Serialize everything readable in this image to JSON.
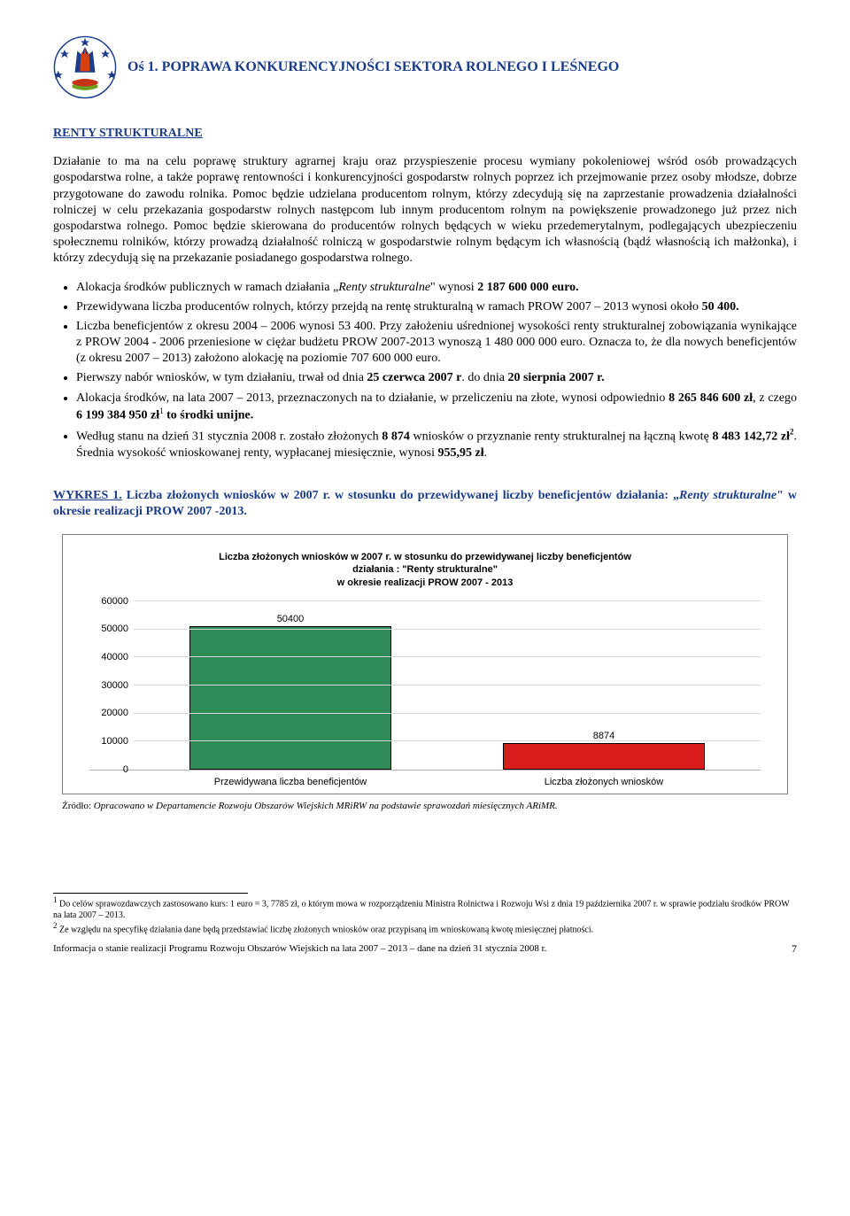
{
  "header": {
    "axis_title": "Oś 1. POPRAWA KONKURENCYJNOŚCI SEKTORA ROLNEGO I LEŚNEGO"
  },
  "section": {
    "title": "RENTY STRUKTURALNE"
  },
  "paragraphs": {
    "p1": "Działanie to ma na celu poprawę struktury agrarnej kraju oraz przyspieszenie procesu wymiany pokoleniowej wśród osób prowadzących gospodarstwa rolne, a także poprawę rentowności i konkurencyjności gospodarstw rolnych poprzez ich przejmowanie przez osoby młodsze, dobrze przygotowane do zawodu rolnika. Pomoc będzie udzielana producentom rolnym, którzy zdecydują się na zaprzestanie prowadzenia działalności rolniczej w celu przekazania gospodarstw rolnych następcom lub innym producentom rolnym na powiększenie prowadzonego już przez nich gospodarstwa rolnego. Pomoc będzie skierowana do producentów rolnych będących w wieku przedemerytalnym, podlegających ubezpieczeniu społecznemu rolników, którzy prowadzą działalność rolniczą w gospodarstwie rolnym będącym ich własnością (bądź własnością ich małżonka), i którzy zdecydują się na przekazanie posiadanego gospodarstwa rolnego."
  },
  "bullets": {
    "b1_pre": "Alokacja środków publicznych w ramach działania „",
    "b1_it": "Renty strukturalne",
    "b1_post": "\" wynosi ",
    "b1_bold": "2 187 600 000 euro.",
    "b2_pre": "Przewidywana liczba producentów rolnych, którzy przejdą na rentę strukturalną w ramach PROW 2007 – 2013 wynosi około ",
    "b2_bold": "50 400.",
    "b3": "Liczba beneficjentów z okresu 2004 – 2006 wynosi 53 400. Przy założeniu uśrednionej wysokości renty strukturalnej zobowiązania wynikające z PROW 2004 - 2006 przeniesione  w ciężar budżetu PROW 2007-2013 wynoszą 1 480 000 000 euro. Oznacza to, że dla nowych beneficjentów (z okresu 2007 – 2013) założono alokację na poziomie 707 600 000 euro.",
    "b4_pre": "Pierwszy nabór wniosków, w tym działaniu, trwał od dnia ",
    "b4_b1": "25 czerwca 2007 r",
    "b4_mid": ". do dnia  ",
    "b4_b2": "20 sierpnia 2007 r.",
    "b5_pre": "Alokacja środków, na lata 2007 – 2013, przeznaczonych na to działanie, w przeliczeniu na złote, wynosi odpowiednio ",
    "b5_b1": "8 265 846 600 zł",
    "b5_mid1": ", z czego ",
    "b5_b2": "6 199 384 950 zł",
    "b5_sup1": "1",
    "b5_end": " to środki unijne.",
    "b6_pre": "Według stanu na dzień 31 stycznia 2008 r. zostało złożonych ",
    "b6_b1": "8 874",
    "b6_mid1": " wniosków o przyznanie renty strukturalnej na łączną kwotę ",
    "b6_b2": "8 483 142,72 zł",
    "b6_sup2": "2",
    "b6_mid2": ". Średnia wysokość wnioskowanej renty, wypłacanej miesięcznie, wynosi ",
    "b6_b3": "955,95 zł",
    "b6_end": "."
  },
  "chart_heading": {
    "lead": "WYKRES 1.",
    "rest_pre": " Liczba złożonych wniosków w 2007 r. w stosunku do przewidywanej liczby beneficjentów działania: „",
    "rest_it": "Renty strukturalne",
    "rest_post": "\" w okresie realizacji PROW 2007 -2013."
  },
  "chart": {
    "title_l1": "Liczba złożonych wniosków w 2007 r. w stosunku do przewidywanej liczby beneficjentów",
    "title_l2": "działania : \"Renty strukturalne\"",
    "title_l3": "w okresie realizacji PROW 2007 - 2013",
    "ylim": [
      0,
      60000
    ],
    "ytick_step": 10000,
    "yticks": [
      "0",
      "10000",
      "20000",
      "30000",
      "40000",
      "50000",
      "60000"
    ],
    "categories": [
      "Przewidywana liczba beneficjentów",
      "Liczba złożonych wniosków"
    ],
    "values": [
      50400,
      8874
    ],
    "value_labels": [
      "50400",
      "8874"
    ],
    "bar_colors": [
      "#2e8b57",
      "#d91c1c"
    ],
    "bar_border": "#000000",
    "grid_color": "#d9d9d9",
    "background": "#ffffff"
  },
  "source": {
    "pre": "Źródło: ",
    "it": "Opracowano w Departamencie Rozwoju Obszarów Wiejskich MRiRW na podstawie sprawozdań miesięcznych ARiMR."
  },
  "footnotes": {
    "f1_sup": "1",
    "f1": " Do celów sprawozdawczych zastosowano kurs: 1 euro = 3, 7785 zł, o którym  mowa w rozporządzeniu Ministra Rolnictwa i Rozwoju Wsi   z dnia 19 października 2007 r. w sprawie podziału środków PROW na lata 2007 – 2013.",
    "f2_sup": "2",
    "f2": " Ze względu na specyfikę działania dane będą przedstawiać liczbę złożonych wniosków oraz przypisaną im wnioskowaną kwotę miesięcznej płatności."
  },
  "footer": {
    "text": "Informacja o stanie realizacji Programu Rozwoju Obszarów Wiejskich na lata 2007 – 2013 – dane na dzień 31 stycznia 2008 r.",
    "page": "7"
  }
}
